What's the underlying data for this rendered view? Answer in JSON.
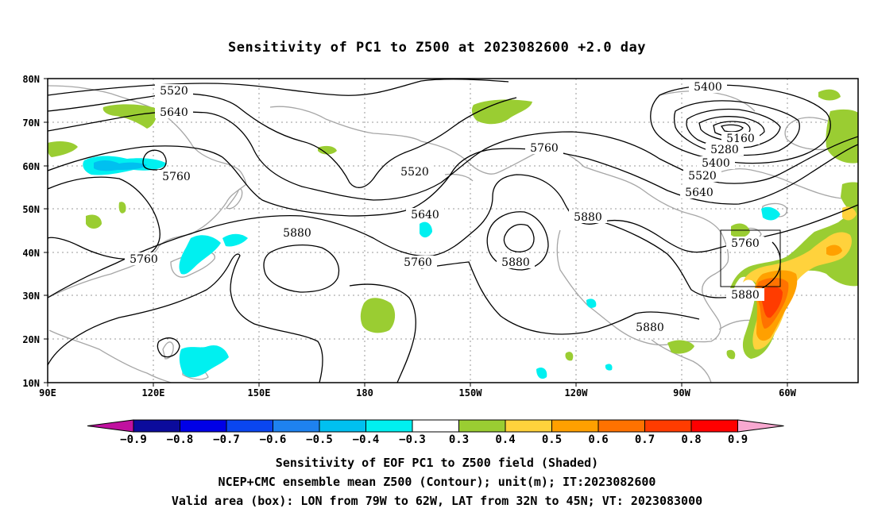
{
  "title": "Sensitivity of PC1 to Z500 at 2023082600 +2.0 day",
  "axes": {
    "lon_labels": [
      "90E",
      "120E",
      "150E",
      "180",
      "150W",
      "120W",
      "90W",
      "60W"
    ],
    "lat_labels": [
      "80N",
      "70N",
      "60N",
      "50N",
      "40N",
      "30N",
      "20N",
      "10N"
    ]
  },
  "contour_labels": [
    "5520",
    "5640",
    "5760",
    "5520",
    "5400",
    "5160",
    "5280",
    "5400",
    "5520",
    "5640",
    "5760",
    "5880",
    "5640",
    "5760",
    "5880",
    "5760",
    "5880",
    "5880",
    "5760",
    "5880"
  ],
  "colorbar": {
    "levels": [
      "−0.9",
      "−0.8",
      "−0.7",
      "−0.6",
      "−0.5",
      "−0.4",
      "−0.3",
      "0.3",
      "0.4",
      "0.5",
      "0.6",
      "0.7",
      "0.8",
      "0.9"
    ],
    "colors": [
      "#c0119f",
      "#0b0b9c",
      "#0000e6",
      "#0a46f0",
      "#1e82f0",
      "#00c0f0",
      "#00f0f0",
      "#ffffff",
      "#9acd32",
      "#ffd23c",
      "#ffa000",
      "#ff7200",
      "#ff3c00",
      "#ff0000",
      "#f8a8d0"
    ]
  },
  "captions": {
    "line1": "Sensitivity of EOF PC1 to Z500 field (Shaded)",
    "line2": "NCEP+CMC ensemble mean Z500 (Contour); unit(m); IT:2023082600",
    "line3": "Valid area (box): LON from 79W to 62W, LAT from 32N to 45N; VT: 2023083000"
  }
}
